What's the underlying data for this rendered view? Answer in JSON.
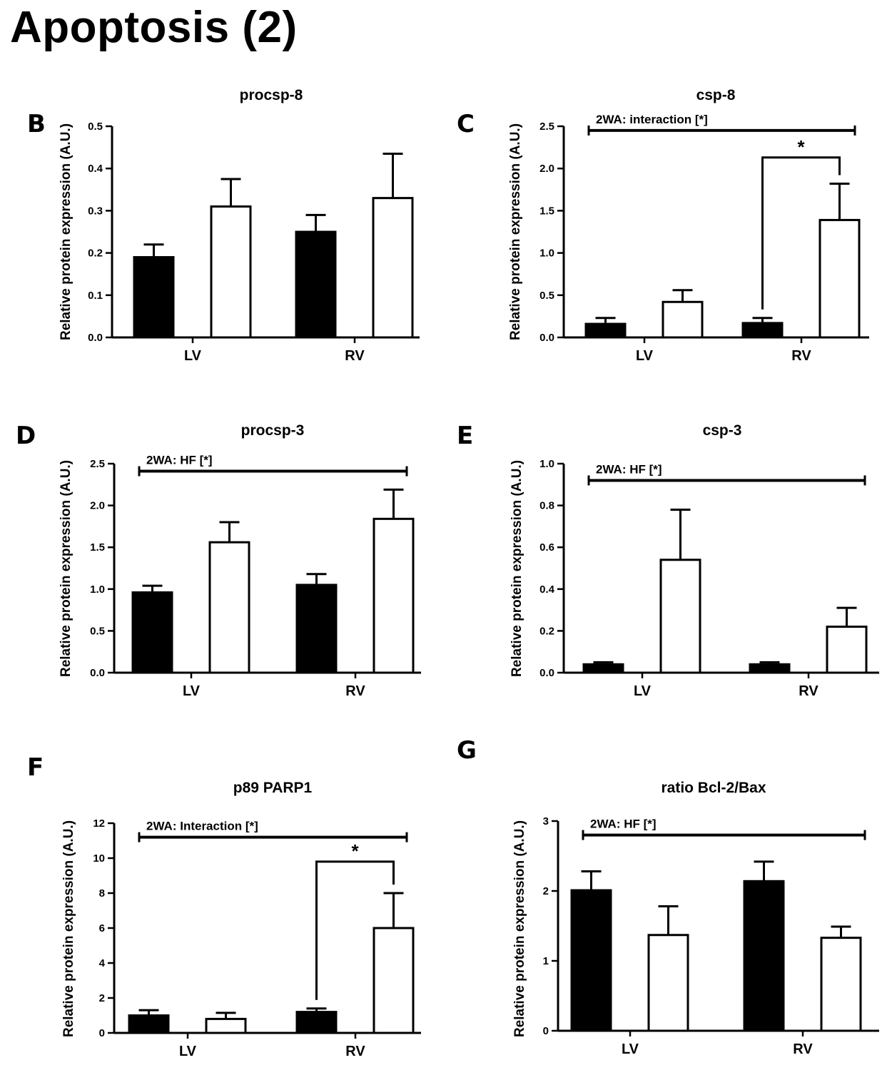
{
  "page": {
    "title": "Apoptosis (2)"
  },
  "colors": {
    "series_filled": "#000000",
    "series_open": "#ffffff",
    "axis": "#000000"
  },
  "chart_data": [
    {
      "id": "B",
      "panel_label": "B",
      "type": "bar",
      "title": "procsp-8",
      "ylabel": "Relative protein expression (A.U.)",
      "categories": [
        "LV",
        "RV"
      ],
      "ylim": [
        0,
        0.5
      ],
      "yticks": [
        0,
        0.1,
        0.2,
        0.3,
        0.4,
        0.5
      ],
      "tick_labels": [
        "0.0",
        "0.1",
        "0.2",
        "0.3",
        "0.4",
        "0.5"
      ],
      "series": [
        {
          "name": "filled",
          "values": [
            0.19,
            0.25
          ],
          "errors": [
            0.03,
            0.04
          ]
        },
        {
          "name": "open",
          "values": [
            0.31,
            0.33
          ],
          "errors": [
            0.065,
            0.105
          ]
        }
      ],
      "stat_label": null,
      "significance": null
    },
    {
      "id": "C",
      "panel_label": "C",
      "type": "bar",
      "title": "csp-8",
      "ylabel": "Relative protein expression (A.U.)",
      "categories": [
        "LV",
        "RV"
      ],
      "ylim": [
        0,
        2.5
      ],
      "yticks": [
        0,
        0.5,
        1.0,
        1.5,
        2.0,
        2.5
      ],
      "tick_labels": [
        "0.0",
        "0.5",
        "1.0",
        "1.5",
        "2.0",
        "2.5"
      ],
      "series": [
        {
          "name": "filled",
          "values": [
            0.16,
            0.17
          ],
          "errors": [
            0.07,
            0.06
          ]
        },
        {
          "name": "open",
          "values": [
            0.42,
            1.39
          ],
          "errors": [
            0.14,
            0.43
          ]
        }
      ],
      "stat_label": "2WA: interaction [*]",
      "stat_value": 2.45,
      "significance": {
        "category_index": 1,
        "label": "*",
        "bracket_value": 2.13
      }
    },
    {
      "id": "D",
      "panel_label": "D",
      "type": "bar",
      "title": "procsp-3",
      "ylabel": "Relative protein expression (A.U.)",
      "categories": [
        "LV",
        "RV"
      ],
      "ylim": [
        0,
        2.5
      ],
      "yticks": [
        0,
        0.5,
        1.0,
        1.5,
        2.0,
        2.5
      ],
      "tick_labels": [
        "0.0",
        "0.5",
        "1.0",
        "1.5",
        "2.0",
        "2.5"
      ],
      "series": [
        {
          "name": "filled",
          "values": [
            0.96,
            1.05
          ],
          "errors": [
            0.08,
            0.13
          ]
        },
        {
          "name": "open",
          "values": [
            1.56,
            1.84
          ],
          "errors": [
            0.24,
            0.35
          ]
        }
      ],
      "stat_label": "2WA: HF [*]",
      "stat_value": 2.41,
      "significance": null
    },
    {
      "id": "E",
      "panel_label": "E",
      "type": "bar",
      "title": "csp-3",
      "ylabel": "Relative protein expression (A.U.)",
      "categories": [
        "LV",
        "RV"
      ],
      "ylim": [
        0,
        1.0
      ],
      "yticks": [
        0,
        0.2,
        0.4,
        0.6,
        0.8,
        1.0
      ],
      "tick_labels": [
        "0.0",
        "0.2",
        "0.4",
        "0.6",
        "0.8",
        "1.0"
      ],
      "series": [
        {
          "name": "filled",
          "values": [
            0.04,
            0.04
          ],
          "errors": [
            0.01,
            0.01
          ]
        },
        {
          "name": "open",
          "values": [
            0.54,
            0.22
          ],
          "errors": [
            0.24,
            0.09
          ]
        }
      ],
      "stat_label": "2WA: HF [*]",
      "stat_value": 0.92,
      "significance": null
    },
    {
      "id": "F",
      "panel_label": "F",
      "type": "bar",
      "title": "p89 PARP1",
      "ylabel": "Relative protein expression (A.U.)",
      "categories": [
        "LV",
        "RV"
      ],
      "ylim": [
        0,
        12
      ],
      "yticks": [
        0,
        2,
        4,
        6,
        8,
        10,
        12
      ],
      "tick_labels": [
        "0",
        "2",
        "4",
        "6",
        "8",
        "10",
        "12"
      ],
      "series": [
        {
          "name": "filled",
          "values": [
            1.0,
            1.2
          ],
          "errors": [
            0.3,
            0.2
          ]
        },
        {
          "name": "open",
          "values": [
            0.8,
            6.0
          ],
          "errors": [
            0.35,
            2.0
          ]
        }
      ],
      "stat_label": "2WA: Interaction [*]",
      "stat_value": 11.2,
      "significance": {
        "category_index": 1,
        "label": "*",
        "bracket_value": 9.8
      }
    },
    {
      "id": "G",
      "panel_label": "G",
      "type": "bar",
      "title": "ratio Bcl-2/Bax",
      "ylabel": "Relative protein expression (A.U.)",
      "categories": [
        "LV",
        "RV"
      ],
      "ylim": [
        0,
        3
      ],
      "yticks": [
        0,
        1,
        2,
        3
      ],
      "tick_labels": [
        "0",
        "1",
        "2",
        "3"
      ],
      "series": [
        {
          "name": "filled",
          "values": [
            2.01,
            2.14
          ],
          "errors": [
            0.27,
            0.28
          ]
        },
        {
          "name": "open",
          "values": [
            1.37,
            1.33
          ],
          "errors": [
            0.41,
            0.16
          ]
        }
      ],
      "stat_label": "2WA: HF [*]",
      "stat_value": 2.8,
      "significance": null
    }
  ]
}
